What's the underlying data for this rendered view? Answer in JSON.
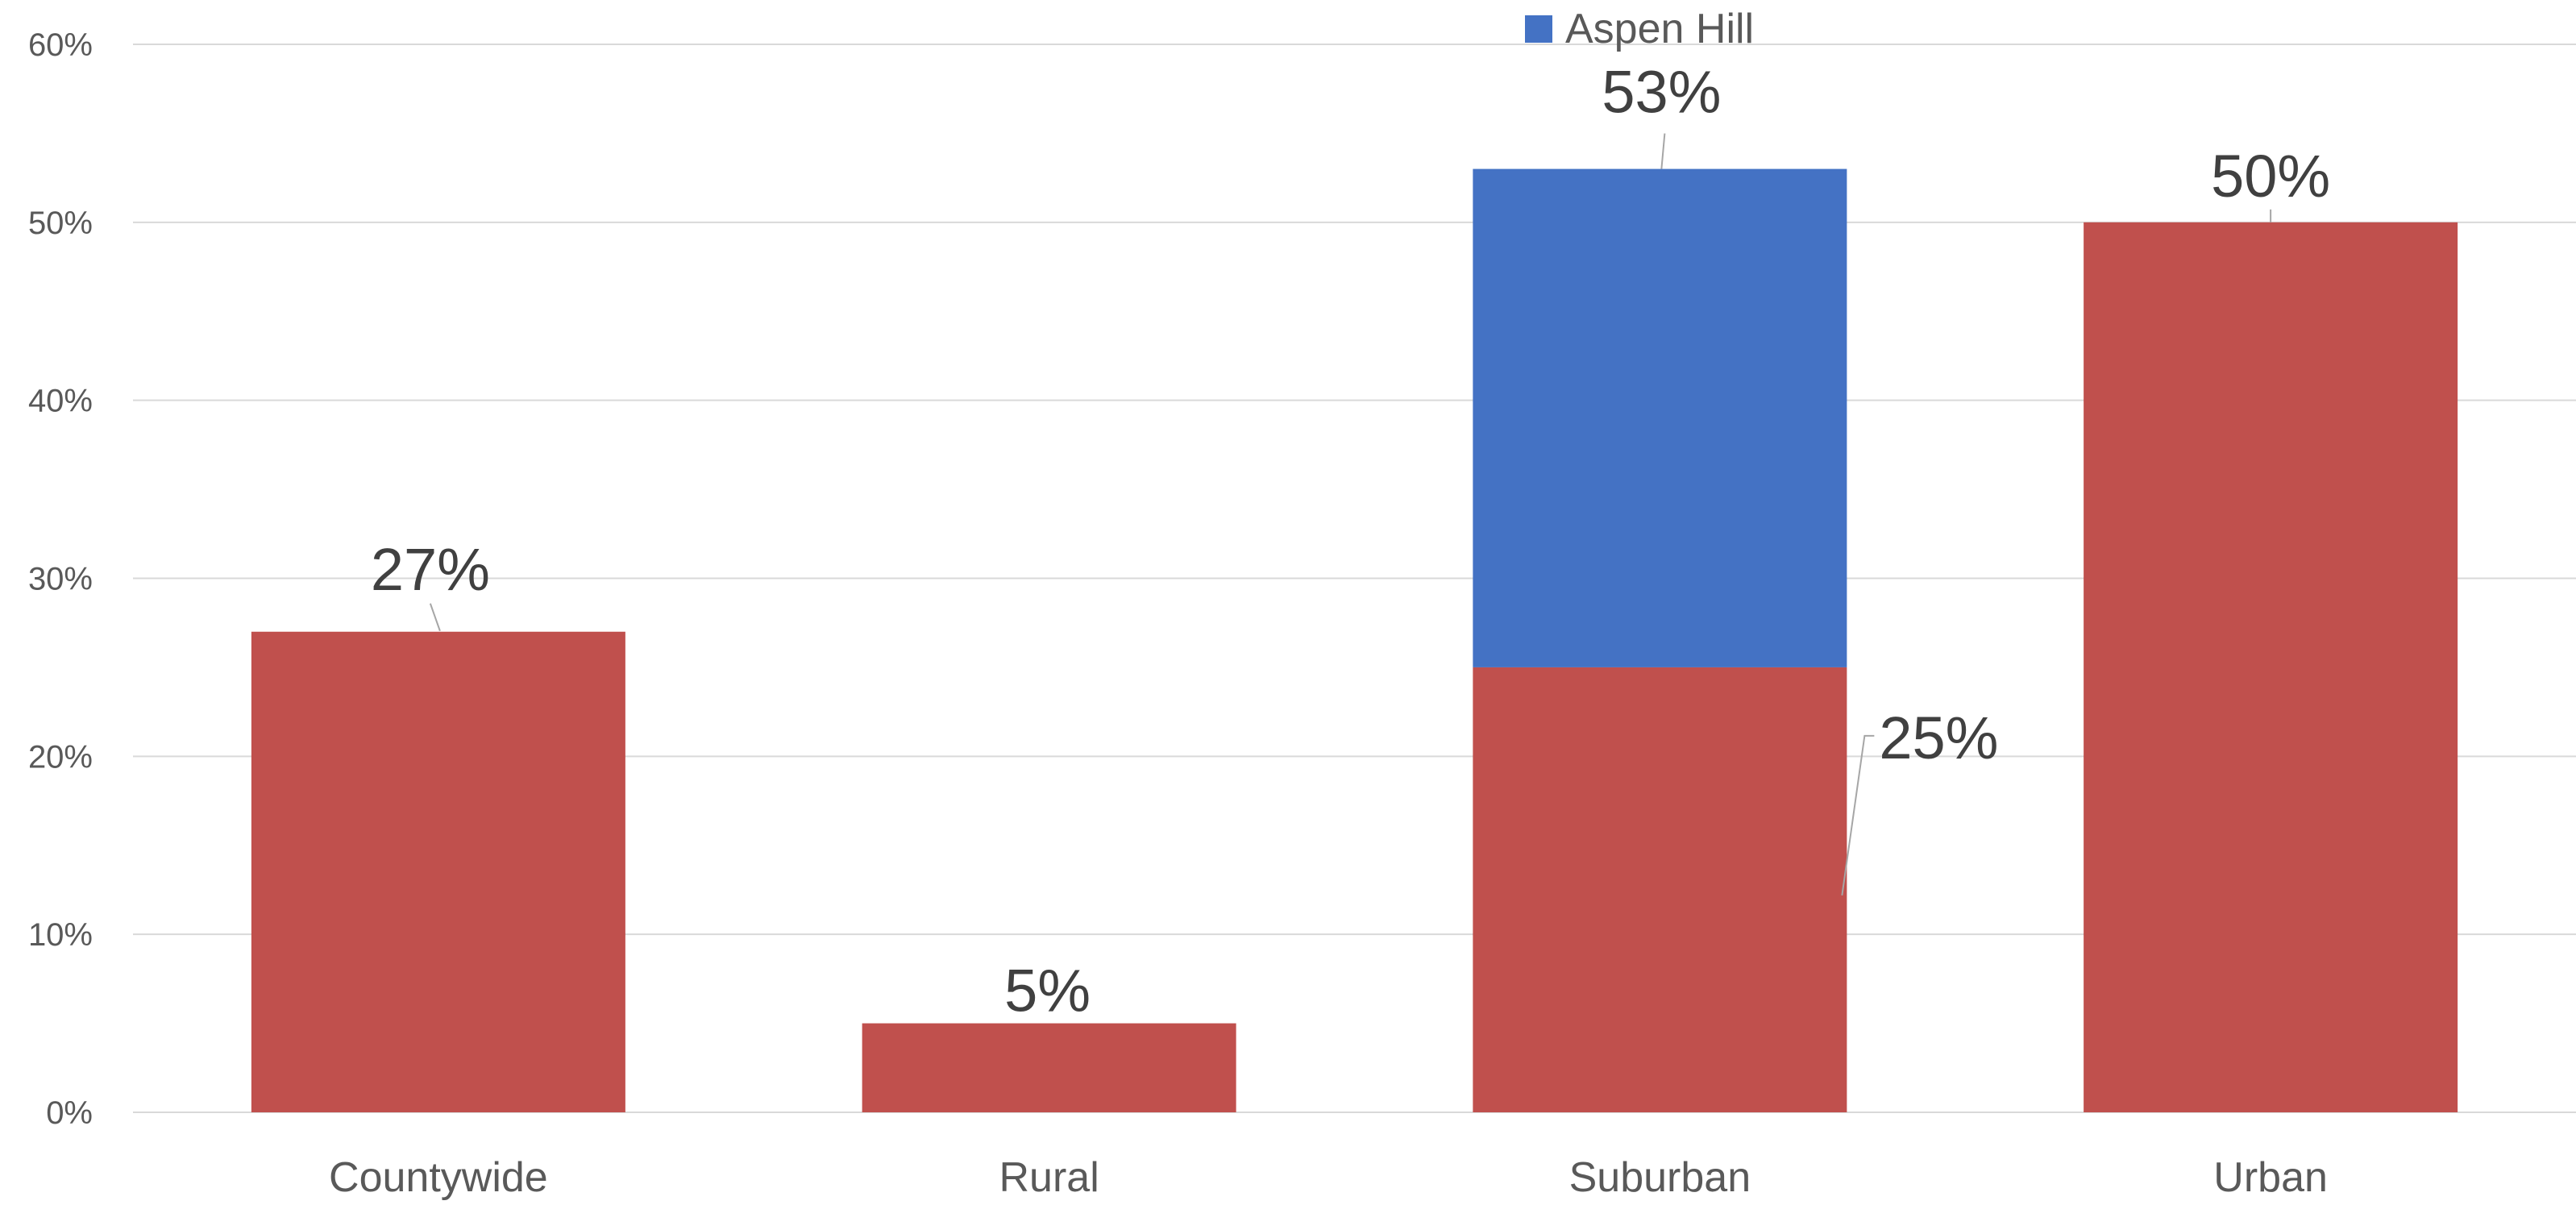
{
  "chart_data": {
    "type": "bar",
    "stacked": true,
    "categories": [
      "Countywide",
      "Rural",
      "Suburban",
      "Urban"
    ],
    "base_values": [
      27,
      5,
      25,
      50
    ],
    "series": [
      {
        "name": "Aspen Hill",
        "values": [
          null,
          null,
          53,
          null
        ],
        "color": "#4472c4"
      }
    ],
    "base_color": "#c0504d",
    "data_labels": [
      "27%",
      "5%",
      "25%",
      "50%",
      "53%"
    ],
    "yticks": [
      "0%",
      "10%",
      "20%",
      "30%",
      "40%",
      "50%",
      "60%"
    ],
    "ylim": [
      0,
      60
    ],
    "grid": true,
    "legend": "top-center",
    "title": "",
    "xlabel": "",
    "ylabel": ""
  }
}
